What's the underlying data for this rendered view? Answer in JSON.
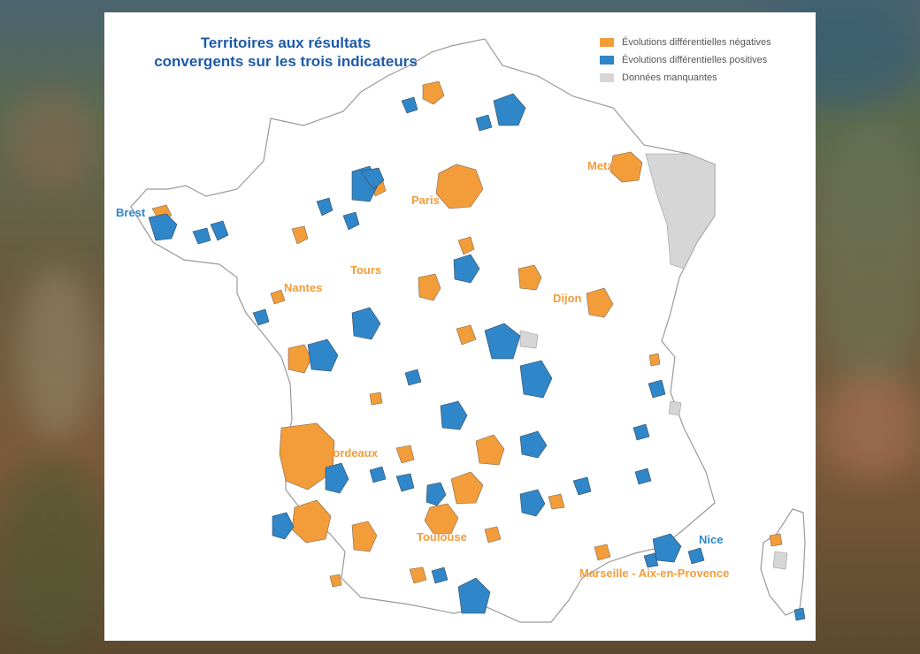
{
  "title": {
    "line1": "Territoires aux résultats",
    "line2": "convergents sur les trois indicateurs"
  },
  "legend": {
    "negative": "Évolutions différentielles négatives",
    "positive": "Évolutions différentielles positives",
    "missing": "Données manquantes"
  },
  "colors": {
    "negative": "#f39c3a",
    "positive": "#2f86c8",
    "missing": "#d6d6d6",
    "title": "#1e5aa8"
  },
  "cities": {
    "paris": "Paris",
    "metz": "Metz",
    "brest": "Brest",
    "tours": "Tours",
    "nantes": "Nantes",
    "dijon": "Dijon",
    "bordeaux": "Bordeaux",
    "toulouse": "Toulouse",
    "nice": "Nice",
    "marseille": "Marseille - Aix-en-Provence"
  }
}
